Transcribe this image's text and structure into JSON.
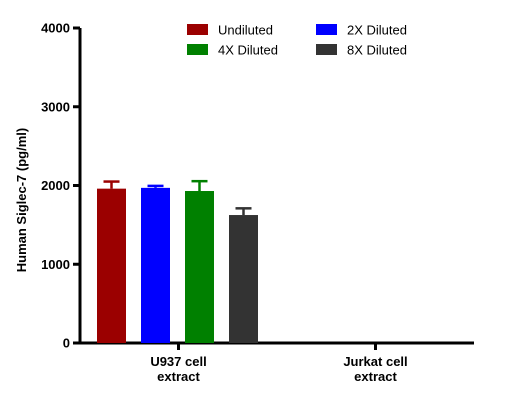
{
  "chart_data": {
    "type": "bar",
    "title": "",
    "xlabel": "",
    "ylabel": "Human Siglec-7 (pg/ml)",
    "ylim": [
      0,
      4000
    ],
    "yticks": [
      "0",
      "1000",
      "2000",
      "3000",
      "4000"
    ],
    "categories": [
      [
        "U937 cell",
        "extract"
      ],
      [
        "Jurkat cell",
        "extract"
      ]
    ],
    "legend_position": "top",
    "grid": false,
    "series": [
      {
        "name": "Undiluted",
        "color": "#9B0000",
        "values": [
          1960,
          null
        ],
        "errors": [
          90,
          null
        ]
      },
      {
        "name": "2X Diluted",
        "color": "#0000FF",
        "values": [
          1970,
          null
        ],
        "errors": [
          25,
          null
        ]
      },
      {
        "name": "4X Diluted",
        "color": "#008000",
        "values": [
          1930,
          null
        ],
        "errors": [
          125,
          null
        ]
      },
      {
        "name": "8X Diluted",
        "color": "#333333",
        "values": [
          1625,
          null
        ],
        "errors": [
          85,
          null
        ]
      }
    ]
  }
}
